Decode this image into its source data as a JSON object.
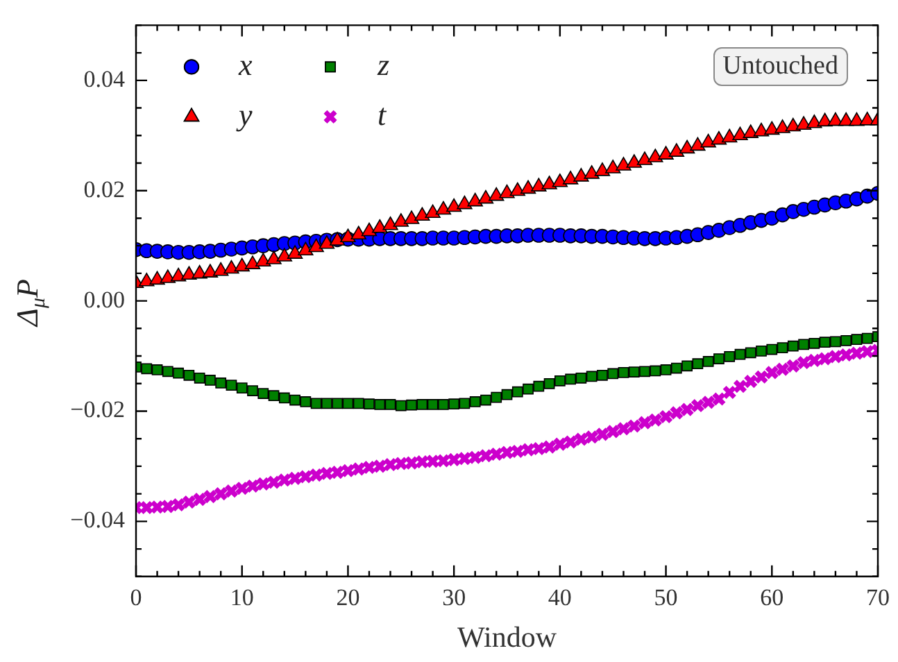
{
  "chart_data": {
    "type": "scatter",
    "xlabel": "Window",
    "ylabel": "Δ$_{μ}$P",
    "annotations": [
      "Untouched"
    ],
    "legend": "top left",
    "grid": false,
    "x": [
      0,
      1,
      2,
      3,
      4,
      5,
      6,
      7,
      8,
      9,
      10,
      11,
      12,
      13,
      14,
      15,
      16,
      17,
      18,
      19,
      20,
      21,
      22,
      23,
      24,
      25,
      26,
      27,
      28,
      29,
      30,
      31,
      32,
      33,
      34,
      35,
      36,
      37,
      38,
      39,
      40,
      41,
      42,
      43,
      44,
      45,
      46,
      47,
      48,
      49,
      50,
      51,
      52,
      53,
      54,
      55,
      56,
      57,
      58,
      59,
      60,
      61,
      62,
      63,
      64,
      65,
      66,
      67,
      68,
      69,
      70
    ],
    "xlim": [
      0,
      70
    ],
    "ylim": [
      -0.05,
      0.05
    ],
    "xticks": [
      0,
      {
        "value": 2,
        "label": null
      },
      {
        "value": 4,
        "label": null
      },
      {
        "value": 6,
        "label": null
      },
      {
        "value": 8,
        "label": null
      },
      10,
      {
        "value": 12,
        "label": null
      },
      {
        "value": 14,
        "label": null
      },
      {
        "value": 16,
        "label": null
      },
      {
        "value": 18,
        "label": null
      },
      20,
      {
        "value": 22,
        "label": null
      },
      {
        "value": 24,
        "label": null
      },
      {
        "value": 26,
        "label": null
      },
      {
        "value": 28,
        "label": null
      },
      30,
      {
        "value": 32,
        "label": null
      },
      {
        "value": 34,
        "label": null
      },
      {
        "value": 36,
        "label": null
      },
      {
        "value": 38,
        "label": null
      },
      40,
      {
        "value": 42,
        "label": null
      },
      {
        "value": 44,
        "label": null
      },
      {
        "value": 46,
        "label": null
      },
      {
        "value": 48,
        "label": null
      },
      50,
      {
        "value": 52,
        "label": null
      },
      {
        "value": 54,
        "label": null
      },
      {
        "value": 56,
        "label": null
      },
      {
        "value": 58,
        "label": null
      },
      60,
      {
        "value": 62,
        "label": null
      },
      {
        "value": 64,
        "label": null
      },
      {
        "value": 66,
        "label": null
      },
      {
        "value": 68,
        "label": null
      },
      70
    ],
    "yticks": [
      {
        "value": -0.05,
        "label": null
      },
      {
        "value": -0.045,
        "label": null
      },
      {
        "value": -0.04,
        "label": "−0.04"
      },
      {
        "value": -0.035,
        "label": null
      },
      {
        "value": -0.03,
        "label": null
      },
      {
        "value": -0.025,
        "label": null
      },
      {
        "value": -0.02,
        "label": "−0.02"
      },
      {
        "value": -0.015,
        "label": null
      },
      {
        "value": -0.01,
        "label": null
      },
      {
        "value": -0.005,
        "label": null
      },
      {
        "value": 0,
        "label": "0.00"
      },
      {
        "value": 0.005,
        "label": null
      },
      {
        "value": 0.01,
        "label": null
      },
      {
        "value": 0.015,
        "label": null
      },
      0.02,
      {
        "value": 0.025,
        "label": null
      },
      {
        "value": 0.03,
        "label": null
      },
      {
        "value": 0.035,
        "label": null
      },
      0.04,
      {
        "value": 0.045,
        "label": null
      },
      {
        "value": 0.05,
        "label": null
      }
    ],
    "series": [
      {
        "name": "x",
        "color": "#0000ff",
        "marker": "circle",
        "values": [
          0.0093,
          0.0091,
          0.009,
          0.0089,
          0.0088,
          0.0088,
          0.0089,
          0.009,
          0.0092,
          0.0094,
          0.0096,
          0.0098,
          0.01,
          0.0102,
          0.0104,
          0.0105,
          0.0107,
          0.0108,
          0.011,
          0.0111,
          0.0112,
          0.0112,
          0.0112,
          0.0113,
          0.0113,
          0.0113,
          0.0113,
          0.0113,
          0.0114,
          0.0114,
          0.0114,
          0.0115,
          0.0116,
          0.0117,
          0.0117,
          0.0118,
          0.0118,
          0.0119,
          0.0119,
          0.0119,
          0.0119,
          0.0118,
          0.0118,
          0.0117,
          0.0117,
          0.0116,
          0.0115,
          0.0114,
          0.0113,
          0.0113,
          0.0114,
          0.0115,
          0.0117,
          0.012,
          0.0124,
          0.0128,
          0.0133,
          0.0137,
          0.0142,
          0.0146,
          0.015,
          0.0156,
          0.0162,
          0.0166,
          0.017,
          0.0174,
          0.0178,
          0.0181,
          0.0185,
          0.019,
          0.0195
        ]
      },
      {
        "name": "y",
        "color": "#ff0000",
        "marker": "triangle",
        "values": [
          0.0032,
          0.0035,
          0.0038,
          0.0041,
          0.0044,
          0.0047,
          0.0049,
          0.0051,
          0.0054,
          0.0058,
          0.0062,
          0.0066,
          0.0071,
          0.0075,
          0.008,
          0.0085,
          0.0091,
          0.0097,
          0.0103,
          0.0109,
          0.0115,
          0.012,
          0.0126,
          0.0132,
          0.0137,
          0.0143,
          0.0148,
          0.0154,
          0.0159,
          0.0165,
          0.017,
          0.0175,
          0.018,
          0.0185,
          0.019,
          0.0195,
          0.0199,
          0.0203,
          0.0207,
          0.0211,
          0.0215,
          0.022,
          0.0225,
          0.023,
          0.0235,
          0.024,
          0.0245,
          0.025,
          0.0255,
          0.026,
          0.0265,
          0.027,
          0.0276,
          0.0281,
          0.0287,
          0.0292,
          0.0296,
          0.03,
          0.0304,
          0.0307,
          0.031,
          0.0313,
          0.0316,
          0.0319,
          0.0322,
          0.0325,
          0.0326,
          0.0326,
          0.0326,
          0.0327,
          0.0327
        ]
      },
      {
        "name": "z",
        "color": "#008000",
        "marker": "square",
        "values": [
          -0.012,
          -0.0123,
          -0.0125,
          -0.0128,
          -0.0131,
          -0.0135,
          -0.014,
          -0.0144,
          -0.0149,
          -0.0153,
          -0.0158,
          -0.0163,
          -0.0168,
          -0.0172,
          -0.0176,
          -0.018,
          -0.0183,
          -0.0186,
          -0.0186,
          -0.0186,
          -0.0186,
          -0.0186,
          -0.0187,
          -0.0188,
          -0.0188,
          -0.019,
          -0.0189,
          -0.0188,
          -0.0188,
          -0.0188,
          -0.0187,
          -0.0186,
          -0.0183,
          -0.018,
          -0.0175,
          -0.017,
          -0.0165,
          -0.016,
          -0.0155,
          -0.015,
          -0.0145,
          -0.0142,
          -0.014,
          -0.0137,
          -0.0135,
          -0.0132,
          -0.013,
          -0.0129,
          -0.0128,
          -0.0127,
          -0.0125,
          -0.0122,
          -0.0118,
          -0.0114,
          -0.011,
          -0.0105,
          -0.0101,
          -0.0097,
          -0.0094,
          -0.0091,
          -0.0088,
          -0.0085,
          -0.0082,
          -0.0079,
          -0.0077,
          -0.0075,
          -0.0074,
          -0.0072,
          -0.007,
          -0.0068,
          -0.0065
        ]
      },
      {
        "name": "t",
        "color": "#cc00cc",
        "marker": "cross",
        "values": [
          -0.0375,
          -0.0375,
          -0.0374,
          -0.0373,
          -0.037,
          -0.0365,
          -0.036,
          -0.0355,
          -0.035,
          -0.0345,
          -0.034,
          -0.0336,
          -0.0332,
          -0.0329,
          -0.0325,
          -0.0322,
          -0.0319,
          -0.0316,
          -0.0313,
          -0.0311,
          -0.0308,
          -0.0305,
          -0.0302,
          -0.03,
          -0.0297,
          -0.0295,
          -0.0294,
          -0.0292,
          -0.0291,
          -0.029,
          -0.0288,
          -0.0286,
          -0.0284,
          -0.0281,
          -0.0278,
          -0.0275,
          -0.0273,
          -0.027,
          -0.0268,
          -0.0265,
          -0.026,
          -0.0256,
          -0.0251,
          -0.0247,
          -0.0242,
          -0.0237,
          -0.0232,
          -0.0227,
          -0.0221,
          -0.0216,
          -0.021,
          -0.0203,
          -0.0197,
          -0.019,
          -0.0184,
          -0.0178,
          -0.0166,
          -0.0155,
          -0.0146,
          -0.0138,
          -0.013,
          -0.0124,
          -0.0118,
          -0.0112,
          -0.0108,
          -0.0105,
          -0.0101,
          -0.0098,
          -0.0095,
          -0.0092,
          -0.009
        ]
      }
    ]
  }
}
